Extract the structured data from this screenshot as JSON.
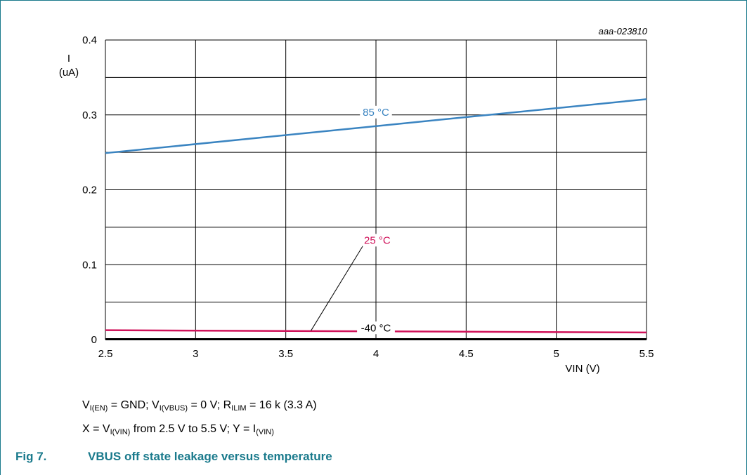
{
  "chart_data": {
    "type": "line",
    "code": "aaa-023810",
    "xlabel": "VIN (V)",
    "ylabel": "I",
    "ylabel_unit": "(uA)",
    "xlim": [
      2.5,
      5.5
    ],
    "ylim": [
      0,
      0.4
    ],
    "x_ticks": [
      "2.5",
      "3",
      "3.5",
      "4",
      "4.5",
      "5",
      "5.5"
    ],
    "y_ticks": [
      "0",
      "0.1",
      "0.2",
      "0.3",
      "0.4"
    ],
    "grid": true,
    "series": [
      {
        "name": "85 °C",
        "color": "#3a84c1",
        "x": [
          2.5,
          5.5
        ],
        "y": [
          0.249,
          0.321
        ],
        "label_at": [
          4.0,
          0.299
        ]
      },
      {
        "name": "25 °C",
        "color": "#d0125a",
        "x": [
          2.5,
          5.5
        ],
        "y": [
          0.0125,
          0.0095
        ],
        "label_at": [
          3.93,
          0.128
        ],
        "leader_from": [
          3.94,
          0.13
        ],
        "leader_to": [
          3.64,
          0.012
        ]
      },
      {
        "name": "-40 °C",
        "color": "#000000",
        "x": [
          2.5,
          5.5
        ],
        "y": [
          0.0005,
          0.0005
        ],
        "label_at": [
          4.0,
          0.011
        ]
      }
    ]
  },
  "notes": {
    "line1": {
      "a": "V",
      "a_sub": "I(EN)",
      "b": " = GND; V",
      "b_sub": "I(VBUS)",
      "c": " = 0 V; R",
      "c_sub": "ILIM",
      "d": " = 16 k (3.3 A)"
    },
    "line2": {
      "a": "X = V",
      "a_sub": "I(VIN)",
      "b": " from 2.5 V to 5.5 V; Y = I",
      "b_sub": "(VIN)"
    }
  },
  "caption": {
    "number": "Fig 7.",
    "title": "VBUS off state leakage versus temperature"
  },
  "colors": {
    "caption": "#1a7a8c",
    "frame": "#1a7a8c"
  }
}
